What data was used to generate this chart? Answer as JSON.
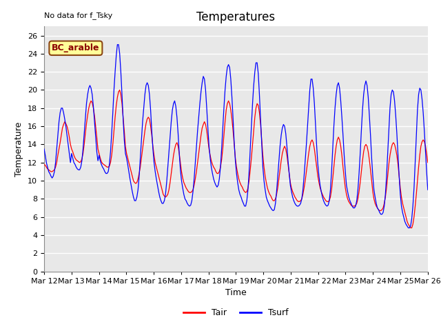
{
  "title": "Temperatures",
  "xlabel": "Time",
  "ylabel": "Temperature",
  "note": "No data for f_Tsky",
  "box_label": "BC_arable",
  "legend": [
    "Tair",
    "Tsurf"
  ],
  "legend_colors": [
    "#ff0000",
    "#0000ff"
  ],
  "ylim": [
    0,
    27
  ],
  "yticks": [
    0,
    2,
    4,
    6,
    8,
    10,
    12,
    14,
    16,
    18,
    20,
    22,
    24,
    26
  ],
  "fig_bg": "#ffffff",
  "plot_bg": "#e8e8e8",
  "grid_color": "#ffffff",
  "title_fontsize": 12,
  "axis_fontsize": 9,
  "tick_fontsize": 8,
  "n_points": 336,
  "tair": [
    11.8,
    11.7,
    11.5,
    11.3,
    11.2,
    11.1,
    11.0,
    11.0,
    11.1,
    11.2,
    11.5,
    12.0,
    12.8,
    13.5,
    14.2,
    15.0,
    15.8,
    16.2,
    16.5,
    16.3,
    16.0,
    15.5,
    14.8,
    14.0,
    13.5,
    13.2,
    12.8,
    12.5,
    12.3,
    12.2,
    12.1,
    12.0,
    12.1,
    12.4,
    13.0,
    14.0,
    15.2,
    16.3,
    17.2,
    18.0,
    18.5,
    18.8,
    18.6,
    18.0,
    17.2,
    16.0,
    14.8,
    13.5,
    13.0,
    12.5,
    12.1,
    11.9,
    11.8,
    11.7,
    11.6,
    11.5,
    11.5,
    11.6,
    12.0,
    12.8,
    14.0,
    15.5,
    17.0,
    18.3,
    19.2,
    19.8,
    20.0,
    19.5,
    18.5,
    17.0,
    15.5,
    13.8,
    13.0,
    12.5,
    12.0,
    11.5,
    11.0,
    10.5,
    10.0,
    9.8,
    9.7,
    9.8,
    10.2,
    10.8,
    11.5,
    12.5,
    13.5,
    14.5,
    15.5,
    16.3,
    16.8,
    17.0,
    16.8,
    16.0,
    15.0,
    13.8,
    12.8,
    12.0,
    11.5,
    11.0,
    10.5,
    10.0,
    9.5,
    9.0,
    8.5,
    8.3,
    8.2,
    8.3,
    8.5,
    9.0,
    9.8,
    10.8,
    11.8,
    12.8,
    13.5,
    14.0,
    14.2,
    13.8,
    13.0,
    12.0,
    11.0,
    10.3,
    9.8,
    9.5,
    9.2,
    9.0,
    8.8,
    8.7,
    8.7,
    8.8,
    9.0,
    9.5,
    10.2,
    11.0,
    12.0,
    13.0,
    14.0,
    15.0,
    15.8,
    16.2,
    16.5,
    16.2,
    15.5,
    14.5,
    13.5,
    12.8,
    12.2,
    11.8,
    11.5,
    11.3,
    11.0,
    10.8,
    10.8,
    11.0,
    11.5,
    12.3,
    13.5,
    15.0,
    16.5,
    17.8,
    18.5,
    18.8,
    18.5,
    17.8,
    16.8,
    15.5,
    14.0,
    12.5,
    11.5,
    10.8,
    10.2,
    9.8,
    9.5,
    9.3,
    9.0,
    8.8,
    8.7,
    8.8,
    9.2,
    10.0,
    11.2,
    12.5,
    14.0,
    15.5,
    17.0,
    18.0,
    18.5,
    18.3,
    17.5,
    16.2,
    14.5,
    12.8,
    11.5,
    10.5,
    9.8,
    9.2,
    8.8,
    8.5,
    8.3,
    8.0,
    7.8,
    7.8,
    8.0,
    8.5,
    9.2,
    10.2,
    11.2,
    12.2,
    13.0,
    13.5,
    13.8,
    13.5,
    12.8,
    11.8,
    10.8,
    9.8,
    9.2,
    8.8,
    8.5,
    8.2,
    8.0,
    7.8,
    7.7,
    7.7,
    7.8,
    8.0,
    8.5,
    9.2,
    10.0,
    11.0,
    12.0,
    13.0,
    13.8,
    14.3,
    14.5,
    14.2,
    13.5,
    12.5,
    11.5,
    10.5,
    9.8,
    9.2,
    8.8,
    8.5,
    8.2,
    8.0,
    7.8,
    7.7,
    7.7,
    7.8,
    8.2,
    9.0,
    10.2,
    11.5,
    12.8,
    13.8,
    14.5,
    14.8,
    14.5,
    13.8,
    12.8,
    11.5,
    10.3,
    9.2,
    8.5,
    8.0,
    7.7,
    7.5,
    7.3,
    7.2,
    7.2,
    7.2,
    7.3,
    7.5,
    8.0,
    8.8,
    9.8,
    11.0,
    12.2,
    13.2,
    13.8,
    14.0,
    13.8,
    13.2,
    12.3,
    11.2,
    10.0,
    8.8,
    8.0,
    7.5,
    7.2,
    7.0,
    6.8,
    6.7,
    6.7,
    6.8,
    7.0,
    7.5,
    8.2,
    9.2,
    10.5,
    11.8,
    12.8,
    13.5,
    14.0,
    14.2,
    14.0,
    13.5,
    12.8,
    11.8,
    10.5,
    9.2,
    8.2,
    7.5,
    7.0,
    6.5,
    6.0,
    5.5,
    5.2,
    5.0,
    4.8,
    4.8,
    5.2,
    6.0,
    7.2,
    8.5,
    10.0,
    11.5,
    12.8,
    13.8,
    14.3,
    14.5,
    14.3,
    13.8,
    13.0,
    12.0
  ],
  "tsurf": [
    13.5,
    12.8,
    12.0,
    11.5,
    11.0,
    10.8,
    10.5,
    10.3,
    10.5,
    11.0,
    12.0,
    13.5,
    15.0,
    16.5,
    17.5,
    18.0,
    18.0,
    17.5,
    16.8,
    16.0,
    15.0,
    14.0,
    13.0,
    12.0,
    13.0,
    12.5,
    12.0,
    11.8,
    11.5,
    11.3,
    11.2,
    11.2,
    11.5,
    12.2,
    13.5,
    15.2,
    17.0,
    18.5,
    19.5,
    20.2,
    20.5,
    20.2,
    19.5,
    18.2,
    16.5,
    14.8,
    13.2,
    12.2,
    12.8,
    12.2,
    11.8,
    11.5,
    11.3,
    11.0,
    10.8,
    10.8,
    11.0,
    11.8,
    13.2,
    15.2,
    17.5,
    20.0,
    22.0,
    23.8,
    25.0,
    25.0,
    24.0,
    22.0,
    19.5,
    16.8,
    14.5,
    13.0,
    12.5,
    11.8,
    11.0,
    10.2,
    9.5,
    8.8,
    8.2,
    7.8,
    7.8,
    8.2,
    9.0,
    10.5,
    12.5,
    14.5,
    16.5,
    18.0,
    19.5,
    20.5,
    20.8,
    20.5,
    19.5,
    17.8,
    15.5,
    13.5,
    12.0,
    11.0,
    10.2,
    9.5,
    8.8,
    8.2,
    7.8,
    7.5,
    7.5,
    7.8,
    8.5,
    9.8,
    11.5,
    13.2,
    15.0,
    16.5,
    17.8,
    18.5,
    18.8,
    18.2,
    17.0,
    15.2,
    13.0,
    11.2,
    10.0,
    9.2,
    8.5,
    8.0,
    7.8,
    7.5,
    7.3,
    7.2,
    7.3,
    7.8,
    8.8,
    10.2,
    12.0,
    13.8,
    15.5,
    17.0,
    18.5,
    19.8,
    20.8,
    21.5,
    21.2,
    20.0,
    18.0,
    15.8,
    13.8,
    12.5,
    11.5,
    10.8,
    10.2,
    9.8,
    9.5,
    9.3,
    9.5,
    10.2,
    11.5,
    13.5,
    15.8,
    18.0,
    20.0,
    21.5,
    22.5,
    22.8,
    22.5,
    21.2,
    19.2,
    16.8,
    14.2,
    12.2,
    10.8,
    9.8,
    9.0,
    8.5,
    8.2,
    7.8,
    7.5,
    7.2,
    7.2,
    7.8,
    9.0,
    11.0,
    13.5,
    16.0,
    18.5,
    20.5,
    22.0,
    23.0,
    23.0,
    21.8,
    19.5,
    16.8,
    14.0,
    11.5,
    10.0,
    9.0,
    8.2,
    7.8,
    7.5,
    7.2,
    7.0,
    6.8,
    6.7,
    6.8,
    7.5,
    8.8,
    10.5,
    12.2,
    13.8,
    15.0,
    15.8,
    16.2,
    16.0,
    15.2,
    13.8,
    12.2,
    10.8,
    9.5,
    8.8,
    8.2,
    7.8,
    7.5,
    7.3,
    7.2,
    7.2,
    7.3,
    7.5,
    8.0,
    9.0,
    10.5,
    12.2,
    14.0,
    16.0,
    18.0,
    20.0,
    21.2,
    21.2,
    20.2,
    18.5,
    16.2,
    13.8,
    11.8,
    10.5,
    9.5,
    8.8,
    8.2,
    7.8,
    7.5,
    7.3,
    7.2,
    7.3,
    7.8,
    9.0,
    11.0,
    13.5,
    16.0,
    18.0,
    19.5,
    20.5,
    20.8,
    20.2,
    18.8,
    17.0,
    15.0,
    12.8,
    11.0,
    9.5,
    8.8,
    8.2,
    7.8,
    7.5,
    7.2,
    7.0,
    7.0,
    7.2,
    7.8,
    9.0,
    10.8,
    13.0,
    15.5,
    17.8,
    19.5,
    20.5,
    21.0,
    20.5,
    19.2,
    17.2,
    15.0,
    12.5,
    10.5,
    9.0,
    8.2,
    7.5,
    7.0,
    6.8,
    6.5,
    6.3,
    6.3,
    6.5,
    7.2,
    8.5,
    10.5,
    13.0,
    15.5,
    18.0,
    19.5,
    20.0,
    19.8,
    18.8,
    17.2,
    15.2,
    12.8,
    10.5,
    8.5,
    7.2,
    6.5,
    6.0,
    5.5,
    5.2,
    5.0,
    4.8,
    4.8,
    5.0,
    5.8,
    7.2,
    9.2,
    12.0,
    15.0,
    17.8,
    19.5,
    20.2,
    20.0,
    19.0,
    17.5,
    15.5,
    13.2,
    11.0,
    9.0
  ]
}
